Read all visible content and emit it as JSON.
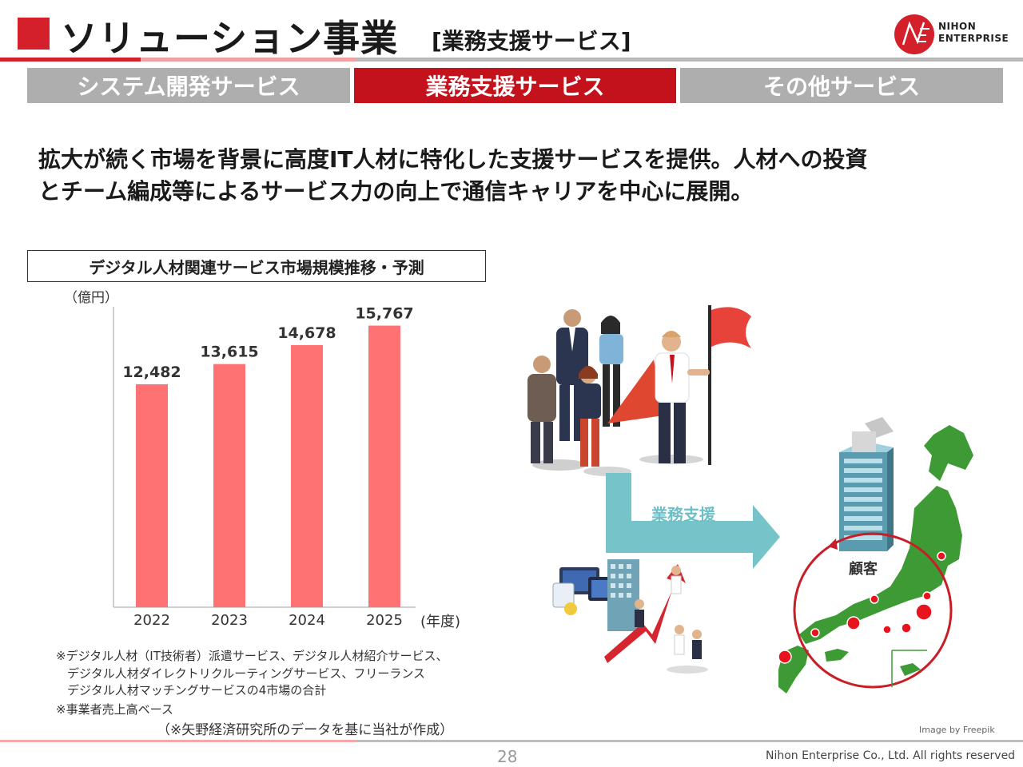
{
  "header": {
    "title": "ソリューション事業",
    "subtitle": "[業務支援サービス]",
    "logo_line1": "NIHON",
    "logo_line2": "ENTERPRISE"
  },
  "tabs": [
    {
      "label": "システム開発サービス",
      "active": false
    },
    {
      "label": "業務支援サービス",
      "active": true
    },
    {
      "label": "その他サービス",
      "active": false
    }
  ],
  "lead": {
    "line1": "拡大が続く市場を背景に高度IT人材に特化した支援サービスを提供。人材への投資",
    "line2": "とチーム編成等によるサービス力の向上で通信キャリアを中心に展開。"
  },
  "chart_title": "デジタル人材関連サービス市場規模推移・予測",
  "chart_data": {
    "type": "bar",
    "categories": [
      "2022",
      "2023",
      "2024",
      "2025"
    ],
    "values": [
      12482,
      13615,
      14678,
      15767
    ],
    "value_labels": [
      "12,482",
      "13,615",
      "14,678",
      "15,767"
    ],
    "ylabel": "（億円）",
    "xlabel": "(年度)",
    "ylim": [
      0,
      17000
    ],
    "color": "#ff7274",
    "grid": false
  },
  "notes": {
    "n1": "※デジタル人材（IT技術者）派遣サービス、デジタル人材紹介サービス、",
    "n2": "デジタル人材ダイレクトリクルーティングサービス、フリーランス",
    "n3": "デジタル人材マッチングサービスの4市場の合計",
    "n4": "※事業者売上高ベース",
    "n5": "（※矢野経済研究所のデータを基に当社が作成）"
  },
  "illustration": {
    "arrow_label": "業務支援",
    "customer_label": "顧客",
    "credit": "Image by Freepik"
  },
  "footer": {
    "page": "28",
    "copyright": "Nihon Enterprise Co., Ltd. All rights reserved"
  },
  "colors": {
    "accent_red": "#d3202a",
    "tab_active": "#c4121c",
    "tab_inactive": "#aeaeae",
    "bar": "#ff7274",
    "arrow": "#76c3c9",
    "map_green": "#3e9a35"
  }
}
